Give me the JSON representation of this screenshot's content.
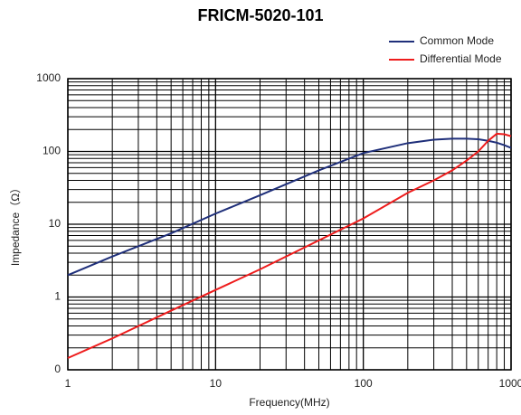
{
  "chart_data": {
    "type": "line",
    "title": "FRICM-5020-101",
    "x_label": "Frequency(MHz)",
    "y_label": "Impedance（Ω）",
    "x": [
      1,
      2,
      5,
      10,
      20,
      50,
      100,
      200,
      300,
      400,
      500,
      600,
      700,
      800,
      900,
      1000
    ],
    "series": [
      {
        "name": "Common Mode",
        "color": "#1f2f7a",
        "values": [
          2,
          3.6,
          7.5,
          14,
          25,
          55,
          95,
          130,
          145,
          150,
          150,
          147,
          140,
          132,
          122,
          112
        ]
      },
      {
        "name": "Differential Mode",
        "color": "#ee1c1c",
        "values": [
          0.145,
          0.27,
          0.65,
          1.25,
          2.4,
          6,
          12,
          27,
          40,
          55,
          75,
          100,
          140,
          175,
          172,
          162
        ]
      }
    ],
    "xlim": [
      1,
      1000
    ],
    "ylim": [
      0.1,
      1000
    ],
    "xticks": [
      1,
      10,
      100,
      1000
    ],
    "yticks": [
      {
        "value": 0.1,
        "label": "0"
      },
      1,
      10,
      100,
      1000
    ],
    "x_log": true,
    "y_log": true,
    "grid": true,
    "minor_grid": true,
    "legend": "top-right"
  }
}
